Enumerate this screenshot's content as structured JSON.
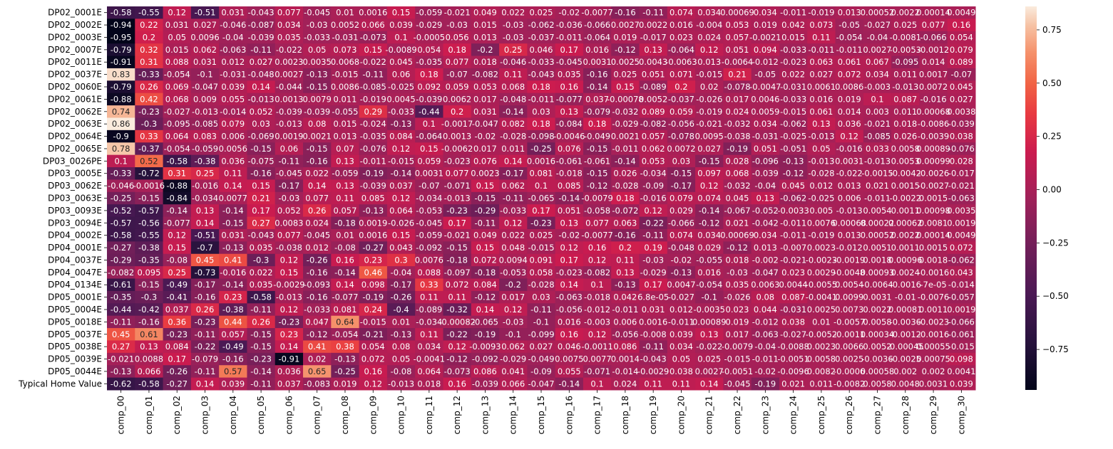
{
  "chart_data": {
    "type": "heatmap",
    "title": "",
    "xlabel": "",
    "ylabel": "",
    "annot": true,
    "colormap": "rocket",
    "vmin": -0.94,
    "vmax": 0.86,
    "colorbar_ticks": [
      "0.75",
      "0.50",
      "0.25",
      "0.00",
      "−0.25",
      "−0.50",
      "−0.75"
    ],
    "colorbar_tick_values": [
      0.75,
      0.5,
      0.25,
      0.0,
      -0.25,
      -0.5,
      -0.75
    ],
    "columns": [
      "comp_00",
      "comp_01",
      "comp_02",
      "comp_03",
      "comp_04",
      "comp_05",
      "comp_06",
      "comp_07",
      "comp_08",
      "comp_09",
      "comp_10",
      "comp_11",
      "comp_12",
      "comp_13",
      "comp_14",
      "comp_15",
      "comp_16",
      "comp_17",
      "comp_18",
      "comp_19",
      "comp_20",
      "comp_21",
      "comp_22",
      "comp_23",
      "comp_24",
      "comp_25",
      "comp_26",
      "comp_27",
      "comp_28",
      "comp_29",
      "comp_30"
    ],
    "rows": [
      "DP02_0001E",
      "DP02_0002E",
      "DP02_0003E",
      "DP02_0007E",
      "DP02_0011E",
      "DP02_0037E",
      "DP02_0060E",
      "DP02_0061E",
      "DP02_0062E",
      "DP02_0063E",
      "DP02_0064E",
      "DP02_0065E",
      "DP03_0026PE",
      "DP03_0005E",
      "DP03_0062E",
      "DP03_0063E",
      "DP03_0093E",
      "DP03_0094E",
      "DP04_0002E",
      "DP04_0001E",
      "DP04_0037E",
      "DP04_0047E",
      "DP04_0134E",
      "DP05_0001E",
      "DP05_0004E",
      "DP05_0018E",
      "DP05_0037E",
      "DP05_0038E",
      "DP05_0039E",
      "DP05_0044E",
      "Typical Home Value"
    ],
    "values": [
      [
        "-0.58",
        "-0.55",
        "0.12",
        "-0.51",
        "0.031",
        "-0.043",
        "0.077",
        "-0.045",
        "0.01",
        "0.0016",
        "0.15",
        "-0.059",
        "-0.021",
        "0.049",
        "0.022",
        "0.025",
        "-0.02",
        "-0.0077",
        "-0.16",
        "-0.11",
        "0.074",
        "0.034",
        "0.00069",
        "0.034",
        "-0.011",
        "-0.019",
        "0.013",
        "0.00052",
        "0.0022",
        "0.00014",
        "0.0049"
      ],
      [
        "-0.94",
        "0.22",
        "0.031",
        "0.027",
        "-0.046",
        "-0.087",
        "0.034",
        "-0.03",
        "0.0052",
        "0.066",
        "0.039",
        "-0.029",
        "-0.03",
        "0.015",
        "-0.03",
        "-0.062",
        "-0.036",
        "-0.066",
        "0.0027",
        "0.0022",
        "0.016",
        "-0.004",
        "0.053",
        "0.019",
        "0.042",
        "0.073",
        "-0.05",
        "-0.027",
        "0.025",
        "0.077",
        "0.16"
      ],
      [
        "-0.95",
        "0.2",
        "0.05",
        "0.0096",
        "-0.04",
        "-0.039",
        "0.035",
        "-0.033",
        "-0.031",
        "-0.073",
        "0.1",
        "-0.0005",
        "0.056",
        "0.013",
        "-0.03",
        "-0.037",
        "-0.011",
        "-0.064",
        "0.019",
        "-0.017",
        "0.023",
        "0.024",
        "0.057",
        "-0.0021",
        "0.015",
        "0.11",
        "-0.054",
        "-0.04",
        "-0.0081",
        "-0.066",
        "0.054"
      ],
      [
        "-0.79",
        "0.32",
        "0.015",
        "0.062",
        "-0.063",
        "-0.11",
        "-0.022",
        "0.05",
        "0.073",
        "0.15",
        "-0.0089",
        "0.054",
        "0.18",
        "-0.2",
        "0.25",
        "0.046",
        "0.17",
        "0.016",
        "-0.12",
        "0.13",
        "-0.064",
        "0.12",
        "0.051",
        "0.094",
        "-0.033",
        "-0.011",
        "-0.011",
        "0.0027",
        "-0.0053",
        "-0.0012",
        "0.079"
      ],
      [
        "-0.91",
        "0.31",
        "0.088",
        "0.031",
        "0.012",
        "0.027",
        "0.0023",
        "0.0035",
        "0.0068",
        "-0.022",
        "0.045",
        "-0.035",
        "0.077",
        "0.018",
        "-0.046",
        "-0.033",
        "-0.045",
        "0.0031",
        "0.0025",
        "0.0043",
        "-0.0063",
        "0.013",
        "-0.0064",
        "-0.012",
        "-0.023",
        "0.063",
        "0.061",
        "0.067",
        "-0.095",
        "0.014",
        "0.089"
      ],
      [
        "0.83",
        "-0.33",
        "-0.054",
        "-0.1",
        "-0.031",
        "-0.048",
        "0.0027",
        "-0.13",
        "-0.015",
        "-0.11",
        "0.06",
        "0.18",
        "-0.07",
        "-0.082",
        "0.11",
        "-0.043",
        "0.035",
        "-0.16",
        "0.025",
        "0.051",
        "0.071",
        "-0.015",
        "0.21",
        "-0.05",
        "0.022",
        "0.027",
        "0.072",
        "0.034",
        "0.011",
        "0.0017",
        "-0.07"
      ],
      [
        "-0.79",
        "0.26",
        "0.069",
        "-0.047",
        "0.039",
        "0.14",
        "-0.044",
        "-0.15",
        "0.0086",
        "-0.085",
        "-0.025",
        "0.092",
        "0.059",
        "0.053",
        "0.068",
        "0.18",
        "0.16",
        "-0.14",
        "0.15",
        "-0.089",
        "0.2",
        "0.02",
        "-0.078",
        "-0.0047",
        "-0.031",
        "0.0061",
        "0.0086",
        "-0.003",
        "-0.013",
        "0.0072",
        "0.045"
      ],
      [
        "-0.88",
        "0.42",
        "0.068",
        "0.009",
        "0.055",
        "-0.013",
        "0.0013",
        "0.0079",
        "0.011",
        "-0.019",
        "0.0045",
        "-0.039",
        "0.0062",
        "0.017",
        "-0.048",
        "-0.011",
        "-0.077",
        "0.037",
        "-0.00078",
        "0.0052",
        "-0.037",
        "-0.026",
        "0.017",
        "0.0046",
        "-0.033",
        "0.016",
        "0.019",
        "0.1",
        "0.087",
        "-0.016",
        "0.027"
      ],
      [
        "0.74",
        "-0.23",
        "-0.027",
        "-0.013",
        "-0.014",
        "0.052",
        "-0.039",
        "-0.039",
        "-0.055",
        "0.29",
        "-0.033",
        "-0.44",
        "0.2",
        "0.031",
        "-0.14",
        "0.03",
        "0.13",
        "-0.079",
        "-0.032",
        "0.089",
        "0.059",
        "-0.019",
        "0.024",
        "0.0059",
        "-0.015",
        "0.061",
        "0.014",
        "0.003",
        "0.011",
        "0.00068",
        "0.0038"
      ],
      [
        "0.86",
        "-0.3",
        "-0.095",
        "-0.085",
        "0.079",
        "0.03",
        "-0.013",
        "0.08",
        "0.015",
        "-0.024",
        "-0.13",
        "0.1",
        "-0.0017",
        "-0.047",
        "0.082",
        "0.18",
        "-0.084",
        "0.18",
        "-0.029",
        "-0.082",
        "-0.056",
        "-0.021",
        "-0.032",
        "0.034",
        "-0.062",
        "0.13",
        "0.036",
        "-0.021",
        "0.018",
        "-0.0086",
        "-0.039"
      ],
      [
        "-0.9",
        "0.33",
        "0.064",
        "0.083",
        "0.006",
        "-0.069",
        "0.0019",
        "0.0021",
        "0.013",
        "-0.035",
        "0.084",
        "-0.064",
        "0.0013",
        "-0.02",
        "-0.028",
        "-0.098",
        "-0.0046",
        "-0.049",
        "0.0021",
        "0.057",
        "-0.078",
        "0.0095",
        "-0.038",
        "-0.031",
        "-0.025",
        "-0.013",
        "0.12",
        "-0.085",
        "0.026",
        "-0.0039",
        "0.038"
      ],
      [
        "0.78",
        "-0.37",
        "-0.054",
        "-0.059",
        "0.0056",
        "-0.15",
        "0.06",
        "-0.15",
        "0.07",
        "-0.076",
        "0.12",
        "0.15",
        "-0.0062",
        "0.017",
        "0.011",
        "-0.25",
        "0.076",
        "-0.15",
        "-0.011",
        "0.062",
        "0.0072",
        "0.027",
        "-0.19",
        "0.051",
        "-0.051",
        "0.05",
        "-0.016",
        "0.033",
        "0.0058",
        "0.00089",
        "-0.076"
      ],
      [
        "0.1",
        "0.52",
        "-0.58",
        "-0.38",
        "0.036",
        "-0.075",
        "-0.11",
        "-0.16",
        "0.13",
        "-0.011",
        "-0.015",
        "0.059",
        "-0.023",
        "0.076",
        "0.14",
        "0.0016",
        "-0.061",
        "-0.061",
        "-0.14",
        "0.053",
        "0.03",
        "-0.15",
        "0.028",
        "-0.096",
        "-0.13",
        "-0.013",
        "0.0031",
        "-0.013",
        "0.0053",
        "0.00099",
        "0.028"
      ],
      [
        "-0.33",
        "-0.72",
        "0.31",
        "0.25",
        "0.11",
        "-0.16",
        "-0.045",
        "0.022",
        "-0.059",
        "-0.19",
        "-0.14",
        "0.0031",
        "0.077",
        "0.0023",
        "-0.17",
        "0.081",
        "-0.018",
        "-0.15",
        "0.026",
        "-0.034",
        "-0.15",
        "0.097",
        "0.068",
        "-0.039",
        "-0.12",
        "-0.028",
        "-0.022",
        "-0.0015",
        "-0.0042",
        "-0.0026",
        "-0.017"
      ],
      [
        "-0.046",
        "-0.0016",
        "-0.88",
        "-0.016",
        "0.14",
        "0.15",
        "-0.17",
        "0.14",
        "0.13",
        "-0.039",
        "0.037",
        "-0.07",
        "-0.071",
        "0.15",
        "0.062",
        "0.1",
        "0.085",
        "-0.12",
        "-0.028",
        "-0.09",
        "-0.17",
        "0.12",
        "-0.032",
        "-0.04",
        "0.045",
        "0.012",
        "0.013",
        "0.021",
        "0.0015",
        "-0.0027",
        "-0.021"
      ],
      [
        "-0.25",
        "-0.15",
        "-0.84",
        "-0.034",
        "0.0077",
        "0.21",
        "-0.03",
        "0.077",
        "0.11",
        "0.085",
        "0.12",
        "-0.034",
        "-0.013",
        "-0.15",
        "-0.11",
        "-0.065",
        "-0.14",
        "-0.0079",
        "0.18",
        "-0.016",
        "0.079",
        "0.074",
        "0.045",
        "0.13",
        "-0.062",
        "-0.025",
        "0.006",
        "-0.011",
        "-0.0022",
        "0.0015",
        "-0.063"
      ],
      [
        "-0.52",
        "-0.57",
        "-0.14",
        "0.13",
        "-0.14",
        "0.17",
        "0.052",
        "0.26",
        "0.057",
        "-0.13",
        "0.064",
        "-0.053",
        "-0.23",
        "-0.29",
        "-0.033",
        "0.17",
        "0.051",
        "-0.058",
        "-0.072",
        "0.12",
        "0.029",
        "-0.14",
        "-0.067",
        "-0.052",
        "-0.0033",
        "0.005",
        "-0.013",
        "0.0054",
        "0.0011",
        "0.00098",
        "0.0035"
      ],
      [
        "-0.57",
        "-0.56",
        "-0.077",
        "0.14",
        "-0.15",
        "0.27",
        "0.0083",
        "0.024",
        "-0.18",
        "0.0019",
        "-0.026",
        "-0.045",
        "0.17",
        "-0.11",
        "0.12",
        "-0.23",
        "0.13",
        "0.077",
        "0.063",
        "-0.22",
        "-0.066",
        "-0.12",
        "0.021",
        "-0.042",
        "-0.011",
        "0.0076",
        "0.00068",
        "0.00022",
        "0.00062",
        "0.0081",
        "0.0019"
      ],
      [
        "-0.58",
        "-0.55",
        "0.12",
        "-0.51",
        "0.031",
        "-0.043",
        "0.077",
        "-0.045",
        "0.01",
        "0.0016",
        "0.15",
        "-0.059",
        "-0.021",
        "0.049",
        "0.022",
        "0.025",
        "-0.02",
        "-0.0077",
        "-0.16",
        "-0.11",
        "0.074",
        "0.034",
        "0.00069",
        "0.034",
        "-0.011",
        "-0.019",
        "0.013",
        "0.00052",
        "0.0022",
        "0.00014",
        "0.0049"
      ],
      [
        "-0.27",
        "-0.38",
        "0.15",
        "-0.7",
        "-0.13",
        "0.035",
        "-0.038",
        "0.012",
        "-0.08",
        "-0.27",
        "0.043",
        "-0.092",
        "-0.15",
        "0.15",
        "0.048",
        "-0.015",
        "0.12",
        "0.16",
        "0.2",
        "0.19",
        "-0.048",
        "0.029",
        "-0.12",
        "0.013",
        "-0.007",
        "0.0023",
        "-0.012",
        "0.0051",
        "0.0011",
        "0.0015",
        "0.072"
      ],
      [
        "-0.29",
        "-0.35",
        "-0.08",
        "0.45",
        "0.41",
        "-0.3",
        "0.12",
        "-0.26",
        "0.16",
        "0.23",
        "0.3",
        "0.0076",
        "-0.18",
        "0.072",
        "0.0094",
        "0.091",
        "0.17",
        "0.12",
        "0.11",
        "-0.03",
        "-0.02",
        "-0.055",
        "0.018",
        "-0.002",
        "-0.021",
        "-0.0023",
        "-0.0019",
        "0.0018",
        "0.00096",
        "0.0018",
        "-0.062"
      ],
      [
        "-0.082",
        "0.095",
        "0.25",
        "-0.73",
        "-0.016",
        "0.022",
        "0.15",
        "-0.16",
        "-0.14",
        "0.46",
        "-0.04",
        "0.088",
        "-0.097",
        "-0.18",
        "-0.053",
        "0.058",
        "-0.023",
        "-0.082",
        "0.13",
        "-0.029",
        "-0.13",
        "0.016",
        "-0.03",
        "-0.047",
        "0.023",
        "0.0029",
        "-0.0048",
        "0.00093",
        "0.0024",
        "-0.0016",
        "0.043"
      ],
      [
        "-0.61",
        "-0.15",
        "-0.49",
        "-0.17",
        "-0.14",
        "0.035",
        "-0.0029",
        "-0.093",
        "0.14",
        "0.098",
        "-0.17",
        "0.33",
        "0.072",
        "0.084",
        "-0.2",
        "-0.028",
        "0.14",
        "0.1",
        "-0.13",
        "0.17",
        "0.0047",
        "-0.054",
        "0.035",
        "0.0063",
        "0.0044",
        "-0.0055",
        "0.0054",
        "-0.0064",
        "-0.0016",
        "-7e-05",
        "-0.014"
      ],
      [
        "-0.35",
        "-0.3",
        "-0.41",
        "-0.16",
        "0.23",
        "-0.58",
        "-0.013",
        "-0.16",
        "-0.077",
        "-0.19",
        "-0.26",
        "0.11",
        "0.11",
        "-0.12",
        "0.017",
        "0.03",
        "-0.063",
        "-0.018",
        "0.042",
        "6.8e-05",
        "-0.027",
        "-0.1",
        "-0.026",
        "0.08",
        "0.087",
        "-0.0041",
        "0.0099",
        "0.0031",
        "-0.01",
        "-0.0076",
        "-0.057"
      ],
      [
        "-0.44",
        "-0.42",
        "0.037",
        "0.26",
        "-0.38",
        "-0.11",
        "0.12",
        "-0.033",
        "0.081",
        "0.24",
        "-0.4",
        "-0.089",
        "-0.32",
        "0.14",
        "0.12",
        "-0.11",
        "-0.056",
        "-0.012",
        "-0.011",
        "0.031",
        "0.012",
        "-0.0035",
        "0.023",
        "0.044",
        "-0.031",
        "0.0025",
        "0.0073",
        "0.0022",
        "0.00081",
        "0.0011",
        "0.0019"
      ],
      [
        "-0.11",
        "-0.16",
        "0.36",
        "-0.23",
        "0.44",
        "0.26",
        "-0.23",
        "0.047",
        "0.64",
        "-0.015",
        "0.01",
        "-0.034",
        "-0.00082",
        "-0.065",
        "-0.03",
        "-0.1",
        "0.016",
        "-0.003",
        "0.006",
        "0.0016",
        "-0.011",
        "0.00089",
        "0.019",
        "-0.012",
        "0.038",
        "0.01",
        "-0.0057",
        "0.0058",
        "-0.0036",
        "-0.0023",
        "-0.066"
      ],
      [
        "0.45",
        "0.61",
        "-0.23",
        "-0.11",
        "0.057",
        "-0.15",
        "0.23",
        "-0.12",
        "-0.054",
        "-0.21",
        "-0.13",
        "0.11",
        "-0.22",
        "-0.19",
        "-0.1",
        "-0.099",
        "0.16",
        "0.12",
        "-0.056",
        "-0.008",
        "0.039",
        "0.13",
        "0.017",
        "-0.063",
        "-0.027",
        "-0.0052",
        "-0.0011",
        "0.00034",
        "-0.0012",
        "-0.0016",
        "-0.061"
      ],
      [
        "0.27",
        "0.13",
        "0.084",
        "-0.22",
        "-0.49",
        "-0.15",
        "0.14",
        "0.41",
        "0.38",
        "0.054",
        "0.08",
        "0.034",
        "0.12",
        "-0.0093",
        "0.062",
        "0.027",
        "0.046",
        "-0.0011",
        "0.086",
        "-0.11",
        "0.034",
        "-0.022",
        "-0.0079",
        "-0.04",
        "-0.0088",
        "0.0023",
        "0.0066",
        "0.0052",
        "-0.00045",
        "0.00055",
        "-0.015"
      ],
      [
        "-0.021",
        "0.0088",
        "0.17",
        "-0.079",
        "-0.16",
        "-0.23",
        "-0.91",
        "0.02",
        "-0.13",
        "0.072",
        "0.05",
        "-0.0041",
        "-0.12",
        "-0.092",
        "-0.029",
        "-0.049",
        "0.0075",
        "0.0077",
        "0.0014",
        "-0.043",
        "0.05",
        "0.025",
        "-0.015",
        "-0.011",
        "-0.0051",
        "0.0058",
        "0.0025",
        "-0.0036",
        "-0.0025",
        "0.00075",
        "0.098"
      ],
      [
        "-0.13",
        "0.066",
        "-0.26",
        "-0.11",
        "0.57",
        "-0.14",
        "0.036",
        "0.65",
        "-0.25",
        "0.16",
        "-0.08",
        "0.064",
        "-0.073",
        "0.086",
        "0.041",
        "-0.09",
        "0.055",
        "-0.071",
        "-0.014",
        "-0.0029",
        "0.038",
        "0.0027",
        "-0.0051",
        "-0.02",
        "-0.0096",
        "0.0082",
        "-0.0006",
        "0.00058",
        "0.002",
        "0.002",
        "0.0041"
      ],
      [
        "-0.62",
        "-0.58",
        "-0.27",
        "0.14",
        "0.039",
        "-0.11",
        "0.037",
        "-0.083",
        "0.019",
        "0.12",
        "-0.013",
        "0.018",
        "0.16",
        "-0.039",
        "0.066",
        "-0.047",
        "-0.14",
        "0.1",
        "0.024",
        "0.11",
        "0.11",
        "0.14",
        "-0.045",
        "-0.19",
        "0.021",
        "0.011",
        "-0.0082",
        "0.0058",
        "0.0048",
        "0.0031",
        "0.039"
      ]
    ]
  }
}
